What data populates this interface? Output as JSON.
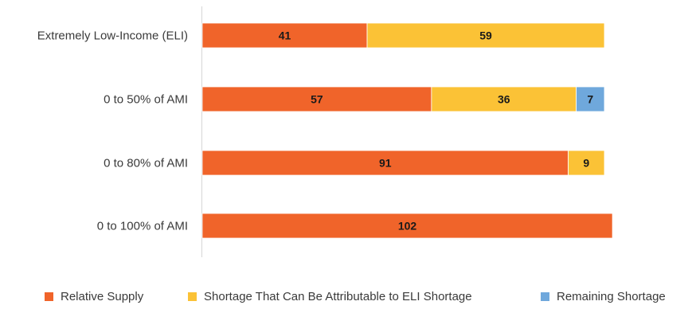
{
  "chart_data": {
    "type": "bar",
    "orientation": "horizontal",
    "stacked": true,
    "categories": [
      "Extremely Low-Income (ELI)",
      "0 to 50% of AMI",
      "0 to 80% of AMI",
      "0 to 100% of AMI"
    ],
    "series": [
      {
        "name": "Relative Supply",
        "color": "#f0642a",
        "values": [
          41,
          57,
          91,
          102
        ]
      },
      {
        "name": "Shortage That Can Be Attributable to ELI Shortage",
        "color": "#fbc236",
        "values": [
          59,
          36,
          9,
          0
        ]
      },
      {
        "name": "Remaining Shortage",
        "color": "#6fa8dc",
        "values": [
          0,
          7,
          0,
          0
        ]
      }
    ],
    "xlim": [
      0,
      102
    ],
    "grid": false,
    "legend_position": "bottom"
  }
}
